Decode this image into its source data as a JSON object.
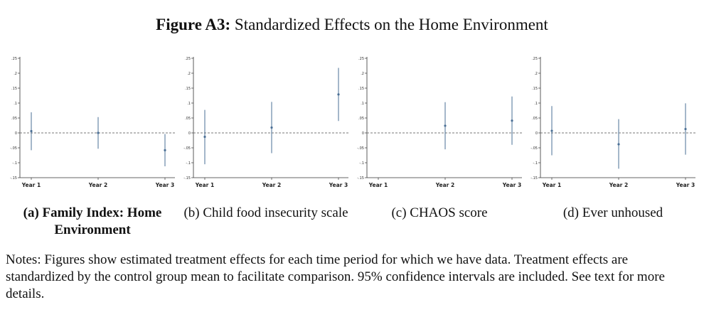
{
  "figure": {
    "title_bold": "Figure A3:",
    "title_rest": " Standardized Effects on the Home Environment"
  },
  "notes": "Notes: Figures show estimated treatment effects for each time period for which we have data. Treatment effects are standardized by the control group mean to facilitate comparison. 95% confidence intervals are included. See text for more details.",
  "colors": {
    "series": "#4a6f95",
    "zero_line": "#777777",
    "axis": "#333333"
  },
  "chart_data": [
    {
      "type": "scatter",
      "caption": "(a) Family Index: Home Environment",
      "caption_bold": true,
      "categories": [
        "Year 1",
        "Year 2",
        "Year 3"
      ],
      "series": [
        {
          "values": [
            0.006,
            0.0,
            -0.058
          ],
          "ci_low": [
            -0.058,
            -0.053,
            -0.112
          ],
          "ci_high": [
            0.069,
            0.053,
            -0.004
          ]
        }
      ],
      "yticks": [
        ".25",
        ".2",
        ".15",
        ".1",
        ".05",
        "0",
        "-.05",
        "-.1",
        "-.15"
      ],
      "ylim": [
        -0.15,
        0.25
      ],
      "reference_line": 0,
      "grid": false
    },
    {
      "type": "scatter",
      "caption": "(b) Child food insecurity scale",
      "caption_bold": false,
      "categories": [
        "Year 1",
        "Year 2",
        "Year 3"
      ],
      "series": [
        {
          "values": [
            -0.013,
            0.018,
            0.129
          ],
          "ci_low": [
            -0.105,
            -0.068,
            0.04
          ],
          "ci_high": [
            0.077,
            0.104,
            0.218
          ]
        }
      ],
      "yticks": [
        ".25",
        ".2",
        ".15",
        ".1",
        ".05",
        "0",
        "-.05",
        "-.1",
        "-.15"
      ],
      "ylim": [
        -0.15,
        0.25
      ],
      "reference_line": 0,
      "grid": false
    },
    {
      "type": "scatter",
      "caption": "(c) CHAOS score",
      "caption_bold": false,
      "categories": [
        "Year 1",
        "Year 2",
        "Year 3"
      ],
      "series": [
        {
          "values": [
            null,
            0.024,
            0.041
          ],
          "ci_low": [
            null,
            -0.055,
            -0.04
          ],
          "ci_high": [
            null,
            0.103,
            0.122
          ]
        }
      ],
      "yticks": [
        ".25",
        ".2",
        ".15",
        ".1",
        ".05",
        "0",
        "-.05",
        "-.1",
        "-.15"
      ],
      "ylim": [
        -0.15,
        0.25
      ],
      "reference_line": 0,
      "grid": false
    },
    {
      "type": "scatter",
      "caption": "(d) Ever unhoused",
      "caption_bold": false,
      "categories": [
        "Year 1",
        "Year 2",
        "Year 3"
      ],
      "series": [
        {
          "values": [
            0.007,
            -0.038,
            0.013
          ],
          "ci_low": [
            -0.075,
            -0.12,
            -0.073
          ],
          "ci_high": [
            0.09,
            0.046,
            0.099
          ]
        }
      ],
      "yticks": [
        ".25",
        ".2",
        ".15",
        ".1",
        ".05",
        "0",
        "-.05",
        "-.1",
        "-.15"
      ],
      "ylim": [
        -0.15,
        0.25
      ],
      "reference_line": 0,
      "grid": false
    }
  ]
}
